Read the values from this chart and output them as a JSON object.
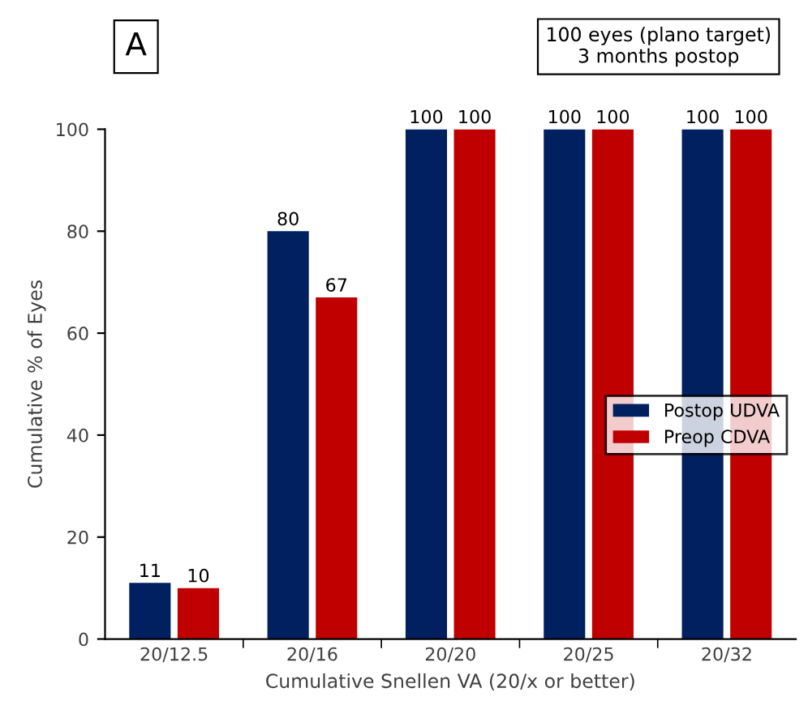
{
  "chart_data": {
    "type": "bar",
    "categories": [
      "20/12.5",
      "20/16",
      "20/20",
      "20/25",
      "20/32"
    ],
    "series": [
      {
        "name": "Postop UDVA",
        "color": "#002060",
        "values": [
          11,
          80,
          100,
          100,
          100
        ]
      },
      {
        "name": "Preop CDVA",
        "color": "#c00000",
        "values": [
          10,
          67,
          100,
          100,
          100
        ]
      }
    ],
    "ylim": [
      0,
      100
    ],
    "yticks": [
      0,
      20,
      40,
      60,
      80,
      100
    ],
    "ylabel": "Cumulative % of Eyes",
    "xlabel": "Cumulative Snellen VA (20/x or better)",
    "annotations": [
      "A",
      "100 eyes (plano target)\n3 months postop"
    ],
    "data_labels": true,
    "legend": "right",
    "grid": false
  }
}
